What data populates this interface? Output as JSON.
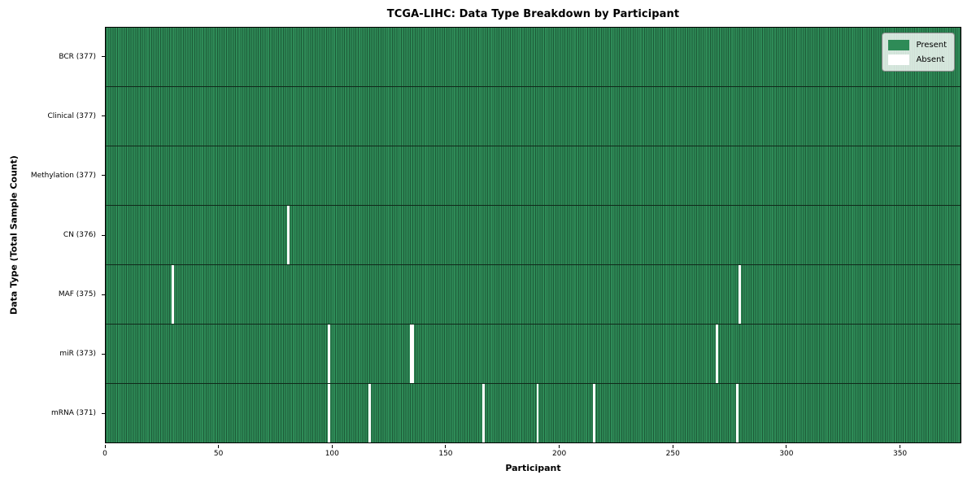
{
  "figure": {
    "title": "TCGA-LIHC: Data Type Breakdown by Participant",
    "xlabel": "Participant",
    "ylabel": "Data Type (Total Sample Count)"
  },
  "legend": {
    "position": "upper right",
    "items": [
      {
        "label": "Present",
        "color": "#2e8b57"
      },
      {
        "label": "Absent",
        "color": "#ffffff"
      }
    ]
  },
  "chart_data": {
    "type": "heatmap",
    "title": "TCGA-LIHC: Data Type Breakdown by Participant",
    "xlabel": "Participant",
    "ylabel": "Data Type (Total Sample Count)",
    "n_participants": 377,
    "xlim": [
      0,
      377
    ],
    "x_ticks": [
      0,
      50,
      100,
      150,
      200,
      250,
      300,
      350
    ],
    "grid": false,
    "legend_entries": [
      "Present",
      "Absent"
    ],
    "legend_position": "upper right",
    "colors": {
      "present": "#2e8b57",
      "present_cell_edge": "#1d5b38",
      "absent": "#ffffff",
      "row_border": "#10291a"
    },
    "rows": [
      {
        "data_type": "bcr",
        "label": "BCR (377)",
        "present_count": 377,
        "absent_count": 0,
        "absent_participants": []
      },
      {
        "data_type": "clinical",
        "label": "Clinical (377)",
        "present_count": 377,
        "absent_count": 0,
        "absent_participants": []
      },
      {
        "data_type": "methylation",
        "label": "Methylation (377)",
        "present_count": 377,
        "absent_count": 0,
        "absent_participants": []
      },
      {
        "data_type": "cn",
        "label": "CN (376)",
        "present_count": 376,
        "absent_count": 1,
        "absent_participants": [
          80
        ]
      },
      {
        "data_type": "maf",
        "label": "MAF (375)",
        "present_count": 375,
        "absent_count": 2,
        "absent_participants": [
          29,
          279
        ]
      },
      {
        "data_type": "mir",
        "label": "miR (373)",
        "present_count": 373,
        "absent_count": 4,
        "absent_participants": [
          98,
          134,
          135,
          269
        ]
      },
      {
        "data_type": "mrna",
        "label": "mRNA (371)",
        "present_count": 371,
        "absent_count": 6,
        "absent_participants": [
          98,
          116,
          166,
          190,
          215,
          278
        ]
      }
    ]
  }
}
